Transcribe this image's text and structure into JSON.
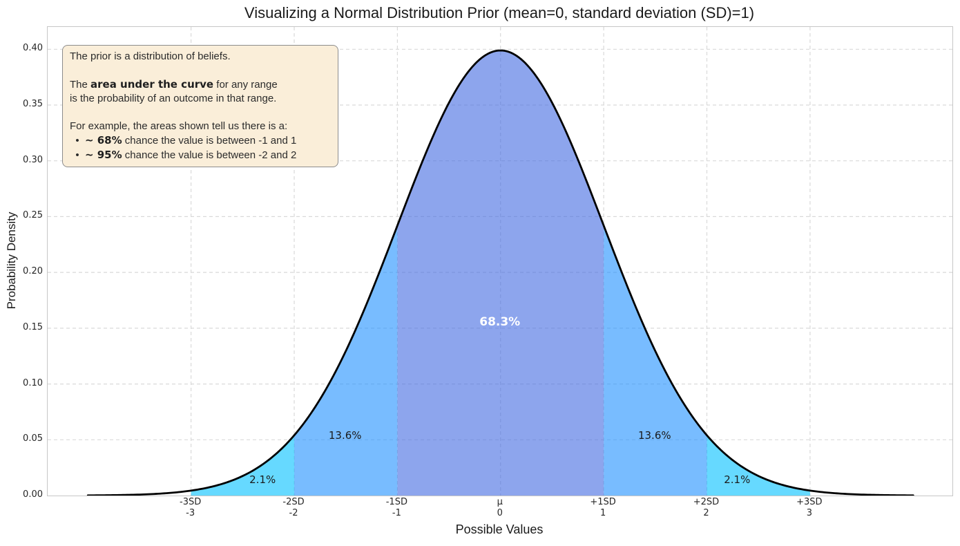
{
  "title": "Visualizing a Normal Distribution Prior (mean=0, standard deviation (SD)=1)",
  "annotation": {
    "bg_color": "#FAEED9",
    "border_color": "#8c8c8c",
    "lines": [
      [
        {
          "t": "The prior is a distribution of beliefs."
        }
      ],
      [],
      [
        {
          "t": "The "
        },
        {
          "t": "area under the curve",
          "b": true
        },
        {
          "t": " for any range"
        }
      ],
      [
        {
          "t": "is the probability of an outcome in that range."
        }
      ],
      [],
      [
        {
          "t": "For example, the areas shown tell us there is a:"
        }
      ],
      [
        {
          "t": "  •  "
        },
        {
          "t": "~ 68%",
          "b": true
        },
        {
          "t": " chance the value is between -1 and 1"
        }
      ],
      [
        {
          "t": "  •  "
        },
        {
          "t": "~ 95%",
          "b": true
        },
        {
          "t": " chance the value is between -2 and 2"
        }
      ]
    ]
  },
  "chart_data": {
    "type": "area",
    "title": "Visualizing a Normal Distribution Prior (mean=0, standard deviation (SD)=1)",
    "xlabel": "Possible Values",
    "ylabel": "Probability Density",
    "xlim": [
      -4.39,
      4.38
    ],
    "ylim": [
      0,
      0.42
    ],
    "grid": {
      "visible": true,
      "style": "dashed",
      "color": "#d9d9d9",
      "axes": "both"
    },
    "distribution": {
      "name": "normal",
      "mean": 0,
      "sd": 1,
      "peak_density": 0.3989
    },
    "curve": {
      "range": [
        -4,
        4
      ],
      "color": "#000000",
      "stroke_width": 2.8
    },
    "x_ticks": [
      {
        "v": -3,
        "sd": "-3SD",
        "num": "-3"
      },
      {
        "v": -2,
        "sd": "-2SD",
        "num": "-2"
      },
      {
        "v": -1,
        "sd": "-1SD",
        "num": "-1"
      },
      {
        "v": 0,
        "sd": "μ",
        "num": "0"
      },
      {
        "v": 1,
        "sd": "+1SD",
        "num": "1"
      },
      {
        "v": 2,
        "sd": "+2SD",
        "num": "2"
      },
      {
        "v": 3,
        "sd": "+3SD",
        "num": "3"
      }
    ],
    "y_ticks": [
      {
        "v": 0.0,
        "label": "0.00"
      },
      {
        "v": 0.05,
        "label": "0.05"
      },
      {
        "v": 0.1,
        "label": "0.10"
      },
      {
        "v": 0.15,
        "label": "0.15"
      },
      {
        "v": 0.2,
        "label": "0.20"
      },
      {
        "v": 0.25,
        "label": "0.25"
      },
      {
        "v": 0.3,
        "label": "0.30"
      },
      {
        "v": 0.35,
        "label": "0.35"
      },
      {
        "v": 0.4,
        "label": "0.40"
      }
    ],
    "regions": [
      {
        "from": -1,
        "to": 1,
        "color": "#4169E1",
        "alpha": 0.6,
        "label": "68.3%",
        "lx": 0,
        "ly": 0.155,
        "label_color": "#ffffff",
        "bold": true,
        "size": 17
      },
      {
        "from": -2,
        "to": -1,
        "color": "#1E90FF",
        "alpha": 0.6,
        "label": "13.6%",
        "lx": -1.5,
        "ly": 0.0535,
        "label_color": "#1a1a1a",
        "bold": false,
        "size": 15
      },
      {
        "from": 1,
        "to": 2,
        "color": "#1E90FF",
        "alpha": 0.6,
        "label": "13.6%",
        "lx": 1.5,
        "ly": 0.0535,
        "label_color": "#1a1a1a",
        "bold": false,
        "size": 15
      },
      {
        "from": -3,
        "to": -2,
        "color": "#00BFFF",
        "alpha": 0.6,
        "label": "2.1%",
        "lx": -2.3,
        "ly": 0.0135,
        "label_color": "#1a1a1a",
        "bold": false,
        "size": 15
      },
      {
        "from": 2,
        "to": 3,
        "color": "#00BFFF",
        "alpha": 0.6,
        "label": "2.1%",
        "lx": 2.3,
        "ly": 0.0135,
        "label_color": "#1a1a1a",
        "bold": false,
        "size": 15
      }
    ]
  }
}
